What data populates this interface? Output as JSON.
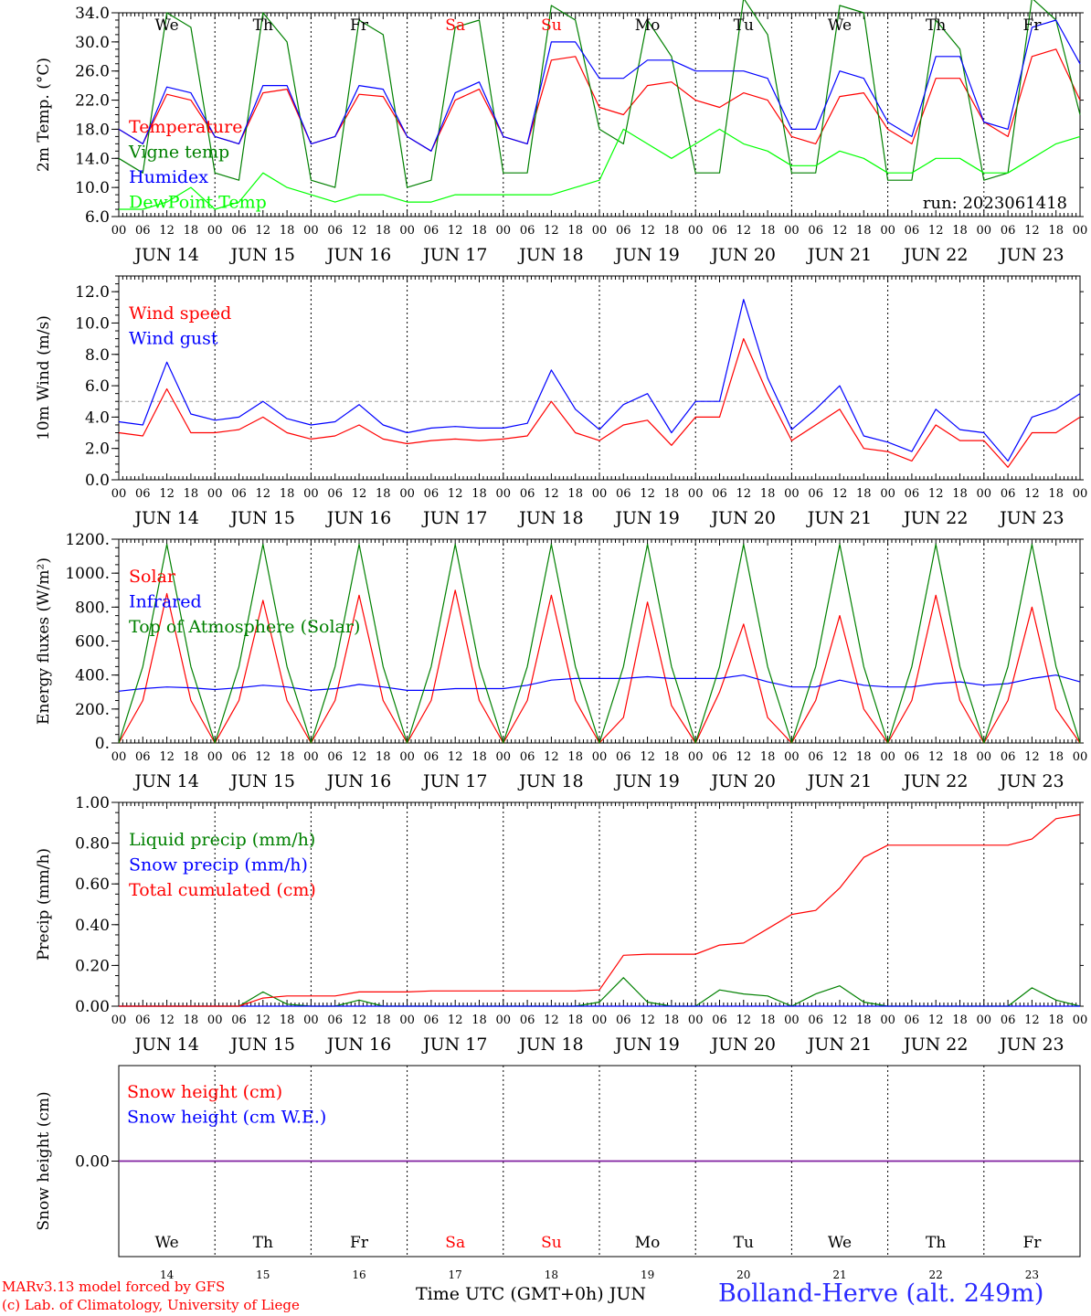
{
  "run_label": "run: 2023061418",
  "date_labels": [
    "JUN 14",
    "JUN 15",
    "JUN 16",
    "JUN 17",
    "JUN 18",
    "JUN 19",
    "JUN 20",
    "JUN 21",
    "JUN 22",
    "JUN 23"
  ],
  "hour_labels": [
    "00",
    "06",
    "12",
    "18"
  ],
  "final_hour_label": "00",
  "weekdays": [
    {
      "label": "We",
      "color": "#000000"
    },
    {
      "label": "Th",
      "color": "#000000"
    },
    {
      "label": "Fr",
      "color": "#000000"
    },
    {
      "label": "Sa",
      "color": "#ff0000"
    },
    {
      "label": "Su",
      "color": "#ff0000"
    },
    {
      "label": "Mo",
      "color": "#000000"
    },
    {
      "label": "Tu",
      "color": "#000000"
    },
    {
      "label": "We",
      "color": "#000000"
    },
    {
      "label": "Th",
      "color": "#000000"
    },
    {
      "label": "Fr",
      "color": "#000000"
    }
  ],
  "bottom_day_numbers": [
    "14",
    "15",
    "16",
    "17",
    "18",
    "19",
    "20",
    "21",
    "22",
    "23"
  ],
  "x_axis_title": "Time UTC (GMT+0h) JUN",
  "credit_line1": "MARv3.13 model forced by GFS",
  "credit_line2": "(c) Lab. of Climatology, University of Liege",
  "station_label": "Bolland-Herve (alt. 249m)",
  "chart_data": [
    {
      "type": "line",
      "ylabel": "2m Temp. (°C)",
      "ylim": [
        6.0,
        34.0
      ],
      "yticks": [
        "6.0",
        "10.0",
        "14.0",
        "18.0",
        "22.0",
        "26.0",
        "30.0",
        "34.0"
      ],
      "x": [
        "06-14 00",
        "06-14 06",
        "06-14 12",
        "06-14 18",
        "06-15 00",
        "06-15 06",
        "06-15 12",
        "06-15 18",
        "06-16 00",
        "06-16 06",
        "06-16 12",
        "06-16 18",
        "06-17 00",
        "06-17 06",
        "06-17 12",
        "06-17 18",
        "06-18 00",
        "06-18 06",
        "06-18 12",
        "06-18 18",
        "06-19 00",
        "06-19 06",
        "06-19 12",
        "06-19 18",
        "06-20 00",
        "06-20 06",
        "06-20 12",
        "06-20 18",
        "06-21 00",
        "06-21 06",
        "06-21 12",
        "06-21 18",
        "06-22 00",
        "06-22 06",
        "06-22 12",
        "06-22 18",
        "06-23 00",
        "06-23 06",
        "06-23 12",
        "06-23 18",
        "06-24 00"
      ],
      "series": [
        {
          "name": "Temperature",
          "color": "#ff0000",
          "values": [
            18,
            16,
            22.8,
            22,
            17,
            16,
            23,
            23.5,
            16,
            17,
            22.8,
            22.5,
            17,
            15,
            22,
            23.5,
            17,
            16,
            27.5,
            28,
            21,
            20,
            24,
            24.5,
            22,
            21,
            23,
            22,
            17,
            16,
            22.5,
            23,
            18,
            16,
            25,
            25,
            19,
            17,
            28,
            29,
            22
          ]
        },
        {
          "name": "Vigne temp",
          "color": "#008000",
          "values": [
            14,
            12,
            34,
            32,
            12,
            11,
            34,
            30,
            11,
            10,
            33,
            31,
            10,
            11,
            32,
            33,
            12,
            12,
            35,
            33,
            18,
            16,
            33,
            28,
            12,
            12,
            36,
            31,
            12,
            12,
            35,
            34,
            11,
            11,
            33,
            29,
            11,
            12,
            36,
            33,
            20
          ]
        },
        {
          "name": "Humidex",
          "color": "#0000ff",
          "values": [
            18,
            16,
            23.8,
            23,
            17,
            16,
            24,
            24,
            16,
            17,
            24,
            23.5,
            17,
            15,
            23,
            24.5,
            17,
            16,
            30,
            30,
            25,
            25,
            27.5,
            27.5,
            26,
            26,
            26,
            25,
            18,
            18,
            26,
            25,
            19,
            17,
            28,
            28,
            19,
            18,
            32,
            33,
            27
          ]
        },
        {
          "name": "DewPoint Temp",
          "color": "#00ff00",
          "values": [
            7,
            7,
            8,
            10,
            7,
            8,
            12,
            10,
            9,
            8,
            9,
            9,
            8,
            8,
            9,
            9,
            9,
            9,
            9,
            10,
            11,
            18,
            16,
            14,
            16,
            18,
            16,
            15,
            13,
            13,
            15,
            14,
            12,
            12,
            14,
            14,
            12,
            12,
            14,
            16,
            17
          ]
        }
      ]
    },
    {
      "type": "line",
      "ylabel": "10m Wind (m/s)",
      "ylim": [
        0.0,
        13.0
      ],
      "yticks": [
        "0.0",
        "2.0",
        "4.0",
        "6.0",
        "8.0",
        "10.0",
        "12.0"
      ],
      "reference_line": 5.0,
      "x": [
        "06-14 00",
        "06-14 06",
        "06-14 12",
        "06-14 18",
        "06-15 00",
        "06-15 06",
        "06-15 12",
        "06-15 18",
        "06-16 00",
        "06-16 06",
        "06-16 12",
        "06-16 18",
        "06-17 00",
        "06-17 06",
        "06-17 12",
        "06-17 18",
        "06-18 00",
        "06-18 06",
        "06-18 12",
        "06-18 18",
        "06-19 00",
        "06-19 06",
        "06-19 12",
        "06-19 18",
        "06-20 00",
        "06-20 06",
        "06-20 12",
        "06-20 18",
        "06-21 00",
        "06-21 06",
        "06-21 12",
        "06-21 18",
        "06-22 00",
        "06-22 06",
        "06-22 12",
        "06-22 18",
        "06-23 00",
        "06-23 06",
        "06-23 12",
        "06-23 18",
        "06-24 00"
      ],
      "series": [
        {
          "name": "Wind speed",
          "color": "#ff0000",
          "values": [
            3,
            2.8,
            5.8,
            3,
            3,
            3.2,
            4,
            3,
            2.6,
            2.8,
            3.5,
            2.6,
            2.3,
            2.5,
            2.6,
            2.5,
            2.6,
            2.8,
            5,
            3,
            2.5,
            3.5,
            3.8,
            2.2,
            4,
            4,
            9,
            5.5,
            2.5,
            3.5,
            4.5,
            2,
            1.8,
            1.2,
            3.5,
            2.5,
            2.5,
            0.8,
            3,
            3,
            4
          ]
        },
        {
          "name": "Wind gust",
          "color": "#0000ff",
          "values": [
            3.7,
            3.5,
            7.5,
            4.2,
            3.8,
            4,
            5,
            3.9,
            3.5,
            3.7,
            4.8,
            3.5,
            3,
            3.3,
            3.4,
            3.3,
            3.3,
            3.6,
            7,
            4.5,
            3.2,
            4.8,
            5.5,
            3,
            5,
            5,
            11.5,
            6.5,
            3.2,
            4.5,
            6,
            2.8,
            2.4,
            1.8,
            4.5,
            3.2,
            3,
            1.2,
            4,
            4.5,
            5.5
          ]
        }
      ]
    },
    {
      "type": "line",
      "ylabel": "Energy fluxes (W/m²)",
      "ylim": [
        0,
        1200
      ],
      "yticks": [
        "0.",
        "200.",
        "400.",
        "600.",
        "800.",
        "1000.",
        "1200."
      ],
      "x": [
        "06-14 00",
        "06-14 06",
        "06-14 12",
        "06-14 18",
        "06-15 00",
        "06-15 06",
        "06-15 12",
        "06-15 18",
        "06-16 00",
        "06-16 06",
        "06-16 12",
        "06-16 18",
        "06-17 00",
        "06-17 06",
        "06-17 12",
        "06-17 18",
        "06-18 00",
        "06-18 06",
        "06-18 12",
        "06-18 18",
        "06-19 00",
        "06-19 06",
        "06-19 12",
        "06-19 18",
        "06-20 00",
        "06-20 06",
        "06-20 12",
        "06-20 18",
        "06-21 00",
        "06-21 06",
        "06-21 12",
        "06-21 18",
        "06-22 00",
        "06-22 06",
        "06-22 12",
        "06-22 18",
        "06-23 00",
        "06-23 06",
        "06-23 12",
        "06-23 18",
        "06-24 00"
      ],
      "series": [
        {
          "name": "Solar",
          "color": "#ff0000",
          "values": [
            0,
            250,
            880,
            250,
            0,
            250,
            840,
            250,
            0,
            250,
            870,
            250,
            0,
            250,
            900,
            250,
            0,
            250,
            870,
            250,
            0,
            150,
            830,
            220,
            0,
            300,
            700,
            150,
            0,
            250,
            750,
            200,
            0,
            250,
            870,
            250,
            0,
            250,
            800,
            200,
            0
          ]
        },
        {
          "name": "Infrared",
          "color": "#0000ff",
          "values": [
            305,
            320,
            330,
            325,
            315,
            325,
            340,
            330,
            310,
            320,
            345,
            330,
            310,
            310,
            320,
            320,
            320,
            340,
            370,
            380,
            380,
            380,
            390,
            380,
            380,
            380,
            400,
            360,
            330,
            330,
            370,
            340,
            330,
            330,
            350,
            360,
            340,
            350,
            380,
            400,
            360
          ]
        },
        {
          "name": "Top of Atmosphere (Solar)",
          "color": "#008000",
          "values": [
            0,
            450,
            1170,
            450,
            0,
            450,
            1170,
            450,
            0,
            450,
            1170,
            450,
            0,
            450,
            1170,
            450,
            0,
            450,
            1170,
            450,
            0,
            450,
            1170,
            450,
            0,
            450,
            1170,
            450,
            0,
            450,
            1170,
            450,
            0,
            450,
            1170,
            450,
            0,
            450,
            1170,
            450,
            0
          ]
        }
      ]
    },
    {
      "type": "line",
      "ylabel": "Precip (mm/h)",
      "ylim": [
        0.0,
        1.0
      ],
      "yticks": [
        "0.00",
        "0.20",
        "0.40",
        "0.60",
        "0.80",
        "1.00"
      ],
      "x": [
        "06-14 00",
        "06-14 06",
        "06-14 12",
        "06-14 18",
        "06-15 00",
        "06-15 06",
        "06-15 12",
        "06-15 18",
        "06-16 00",
        "06-16 06",
        "06-16 12",
        "06-16 18",
        "06-17 00",
        "06-17 06",
        "06-17 12",
        "06-17 18",
        "06-18 00",
        "06-18 06",
        "06-18 12",
        "06-18 18",
        "06-19 00",
        "06-19 06",
        "06-19 12",
        "06-19 18",
        "06-20 00",
        "06-20 06",
        "06-20 12",
        "06-20 18",
        "06-21 00",
        "06-21 06",
        "06-21 12",
        "06-21 18",
        "06-22 00",
        "06-22 06",
        "06-22 12",
        "06-22 18",
        "06-23 00",
        "06-23 06",
        "06-23 12",
        "06-23 18",
        "06-24 00"
      ],
      "series": [
        {
          "name": "Liquid precip (mm/h)",
          "color": "#008000",
          "values": [
            0,
            0,
            0,
            0,
            0,
            0,
            0.07,
            0.01,
            0,
            0,
            0.03,
            0,
            0,
            0,
            0,
            0,
            0,
            0,
            0,
            0,
            0.02,
            0.14,
            0.02,
            0,
            0,
            0.08,
            0.06,
            0.05,
            0,
            0.06,
            0.1,
            0.02,
            0,
            0,
            0,
            0,
            0,
            0,
            0.09,
            0.03,
            0
          ]
        },
        {
          "name": "Snow precip (mm/h)",
          "color": "#0000ff",
          "values": [
            0,
            0,
            0,
            0,
            0,
            0,
            0,
            0,
            0,
            0,
            0,
            0,
            0,
            0,
            0,
            0,
            0,
            0,
            0,
            0,
            0,
            0,
            0,
            0,
            0,
            0,
            0,
            0,
            0,
            0,
            0,
            0,
            0,
            0,
            0,
            0,
            0,
            0,
            0,
            0,
            0
          ]
        },
        {
          "name": "Total cumulated (cm)",
          "color": "#ff0000",
          "values": [
            0,
            0,
            0,
            0,
            0,
            0,
            0.04,
            0.05,
            0.05,
            0.05,
            0.07,
            0.07,
            0.07,
            0.075,
            0.075,
            0.075,
            0.075,
            0.075,
            0.075,
            0.075,
            0.08,
            0.25,
            0.255,
            0.255,
            0.255,
            0.3,
            0.31,
            0.38,
            0.45,
            0.47,
            0.58,
            0.73,
            0.79,
            0.79,
            0.79,
            0.79,
            0.79,
            0.79,
            0.82,
            0.92,
            0.94
          ]
        }
      ]
    },
    {
      "type": "line",
      "ylabel": "Snow height (cm)",
      "ylim": [
        -1.0,
        1.0
      ],
      "yticks": [
        "0.00"
      ],
      "x": [
        "06-14 00",
        "06-24 00"
      ],
      "series": [
        {
          "name": "Snow height (cm)",
          "color": "#ff0000",
          "values": [
            0,
            0
          ]
        },
        {
          "name": "Snow height (cm W.E.)",
          "color": "#0000ff",
          "values": [
            0,
            0
          ]
        }
      ]
    }
  ]
}
